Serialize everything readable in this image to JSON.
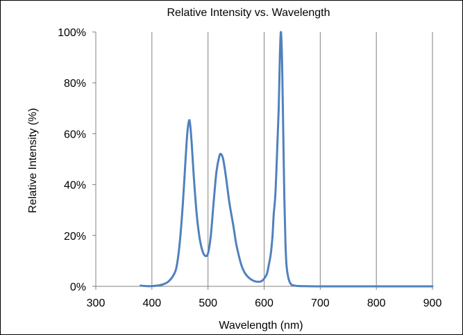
{
  "chart_data": {
    "type": "line",
    "title": "Relative Intensity vs. Wavelength",
    "xlabel": "Wavelength (nm)",
    "ylabel": "Relative Intensity (%)",
    "xlim": [
      300,
      900
    ],
    "ylim": [
      0,
      100
    ],
    "x_ticks": [
      300,
      400,
      500,
      600,
      700,
      800,
      900
    ],
    "x_tick_labels": [
      "300",
      "400",
      "500",
      "600",
      "700",
      "800",
      "900"
    ],
    "y_ticks": [
      0,
      20,
      40,
      60,
      80,
      100
    ],
    "y_tick_labels": [
      "0%",
      "20%",
      "40%",
      "60%",
      "80%",
      "100%"
    ],
    "grid": {
      "vertical": true,
      "horizontal": false
    },
    "legend": "none",
    "series": [
      {
        "color": "#4f81bd",
        "points": [
          [
            380,
            0.3
          ],
          [
            390,
            0.1
          ],
          [
            400,
            0.1
          ],
          [
            410,
            0.3
          ],
          [
            420,
            0.8
          ],
          [
            430,
            2
          ],
          [
            440,
            5
          ],
          [
            445,
            9
          ],
          [
            450,
            18
          ],
          [
            455,
            32
          ],
          [
            460,
            50
          ],
          [
            463,
            60
          ],
          [
            466,
            65
          ],
          [
            468,
            64
          ],
          [
            471,
            56
          ],
          [
            475,
            42
          ],
          [
            480,
            28
          ],
          [
            485,
            19
          ],
          [
            490,
            14
          ],
          [
            495,
            12
          ],
          [
            500,
            13
          ],
          [
            505,
            20
          ],
          [
            510,
            33
          ],
          [
            515,
            45
          ],
          [
            520,
            51
          ],
          [
            523,
            52
          ],
          [
            527,
            50
          ],
          [
            532,
            43
          ],
          [
            538,
            33
          ],
          [
            545,
            24
          ],
          [
            550,
            17
          ],
          [
            555,
            12
          ],
          [
            560,
            8
          ],
          [
            565,
            5.5
          ],
          [
            570,
            4
          ],
          [
            575,
            3
          ],
          [
            580,
            2.3
          ],
          [
            585,
            1.9
          ],
          [
            590,
            1.8
          ],
          [
            595,
            2
          ],
          [
            600,
            3
          ],
          [
            605,
            5
          ],
          [
            608,
            8
          ],
          [
            612,
            13
          ],
          [
            615,
            20
          ],
          [
            617,
            28
          ],
          [
            620,
            36
          ],
          [
            623,
            52
          ],
          [
            626,
            70
          ],
          [
            628,
            90
          ],
          [
            630,
            100
          ],
          [
            632,
            88
          ],
          [
            634,
            62
          ],
          [
            636,
            35
          ],
          [
            638,
            17
          ],
          [
            640,
            8
          ],
          [
            643,
            3.5
          ],
          [
            646,
            1.5
          ],
          [
            650,
            0.5
          ],
          [
            660,
            0.15
          ],
          [
            680,
            0.05
          ],
          [
            700,
            0
          ],
          [
            750,
            0
          ],
          [
            800,
            0
          ],
          [
            850,
            0
          ],
          [
            900,
            0
          ]
        ]
      }
    ]
  }
}
